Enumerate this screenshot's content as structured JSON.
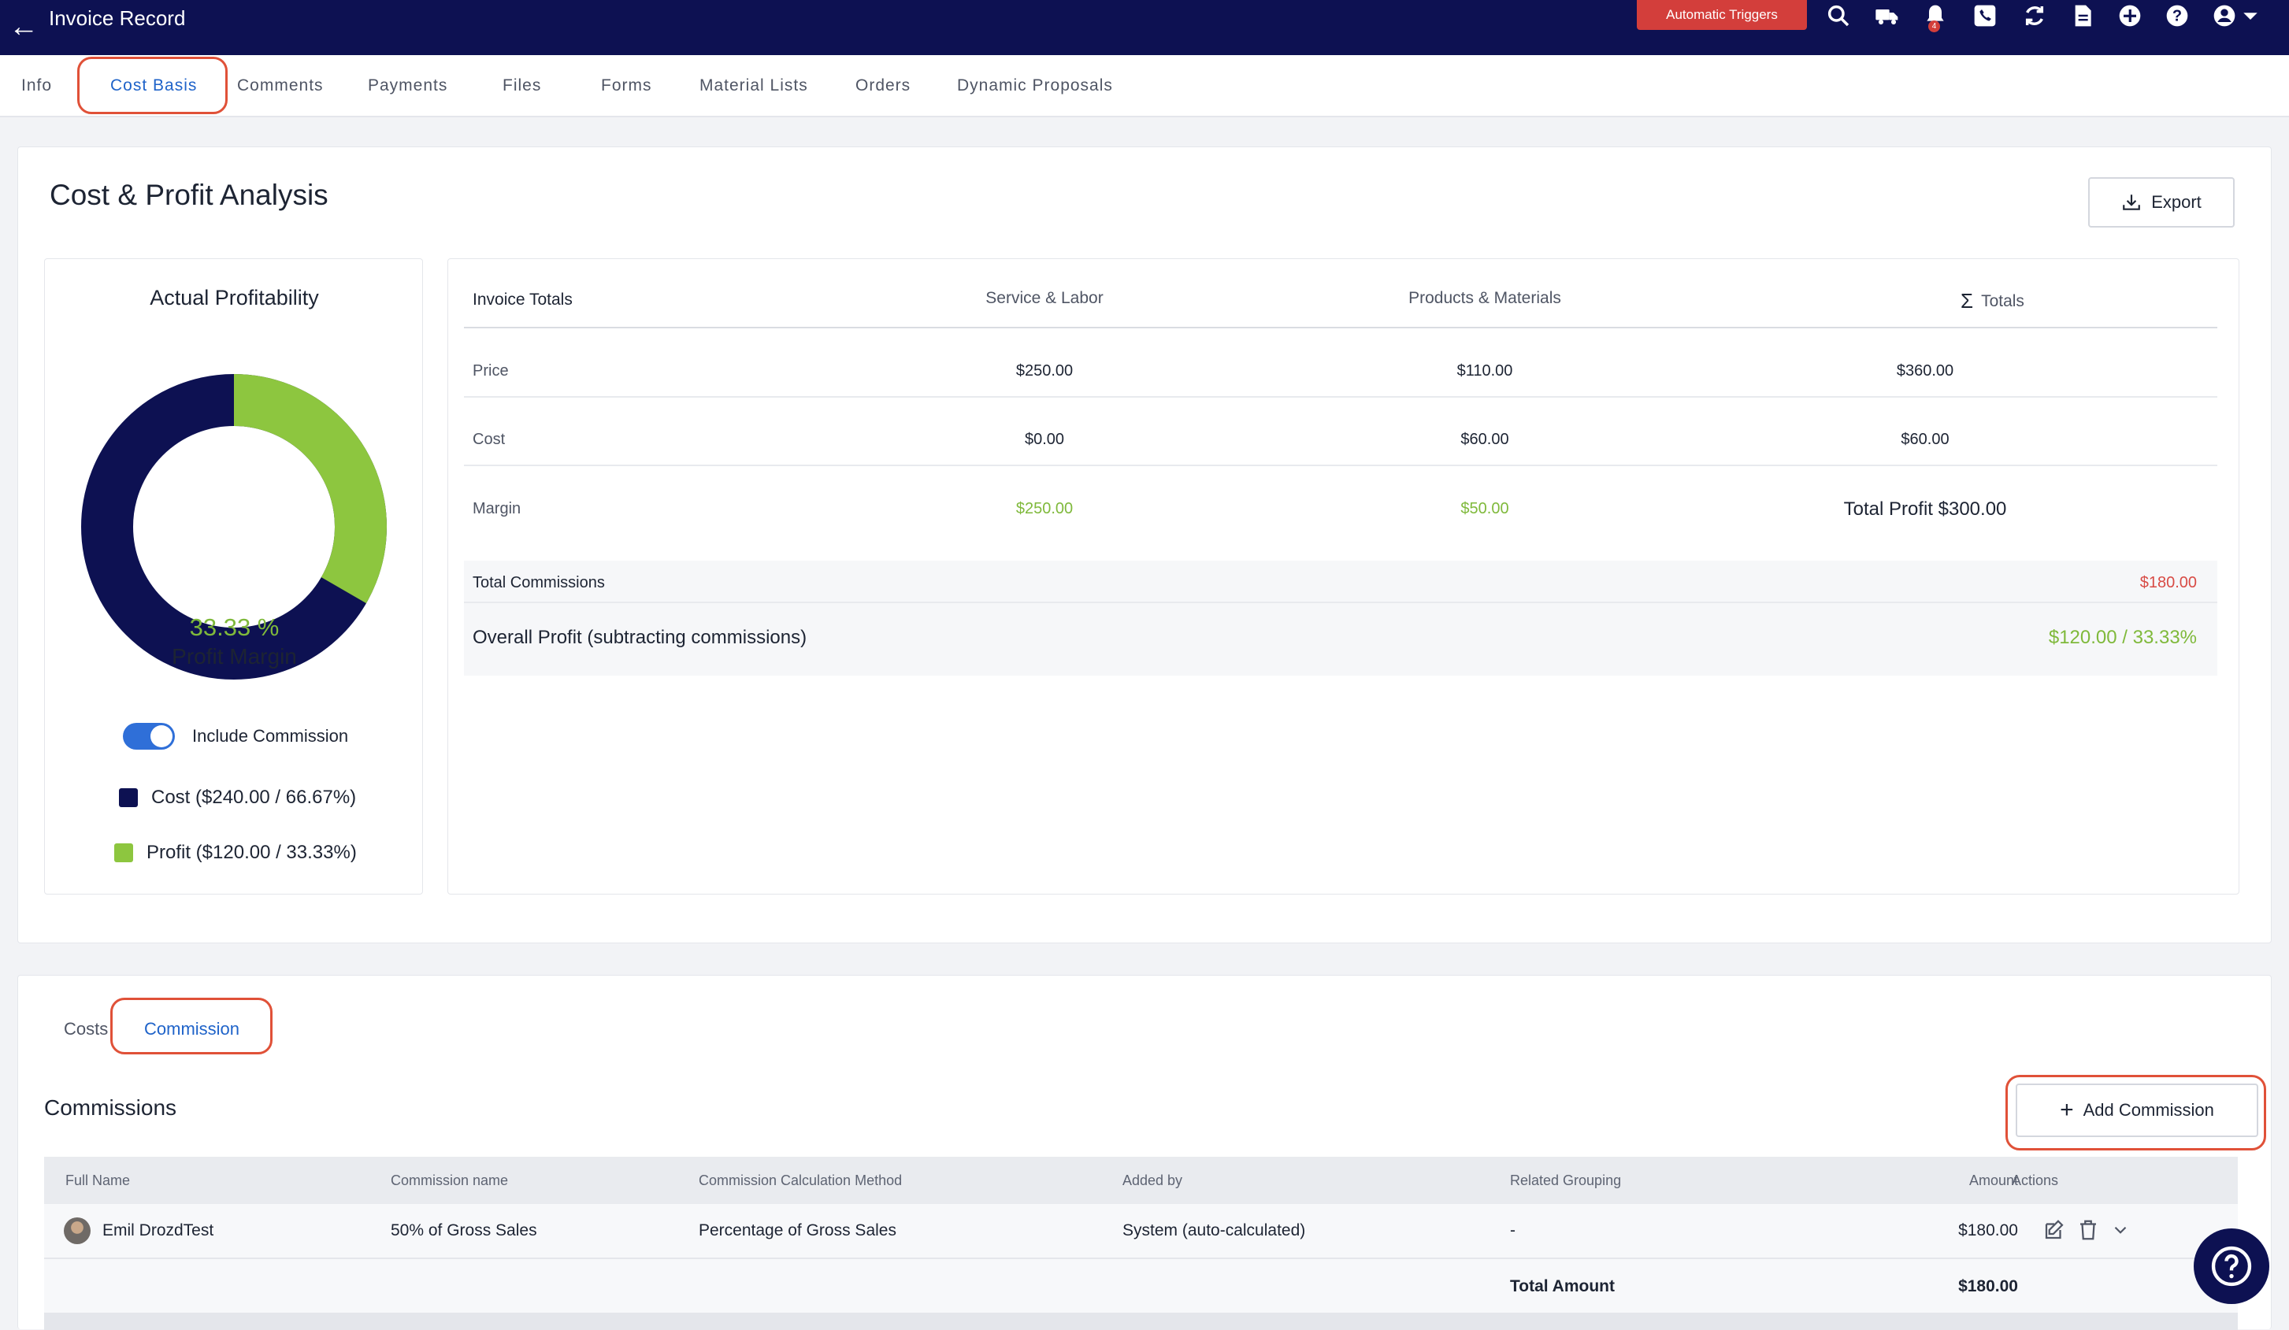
{
  "topbar": {
    "title": "Invoice Record",
    "triggers_label": "Automatic Triggers",
    "notification_count": "4",
    "icons": [
      "back-arrow-icon",
      "search-icon",
      "truck-icon",
      "bell-icon",
      "phone-icon",
      "sync-icon",
      "document-icon",
      "plus-circle-icon",
      "help-icon",
      "user-circle-icon",
      "chevron-down-icon"
    ]
  },
  "tabs": [
    "Info",
    "Cost Basis",
    "Comments",
    "Payments",
    "Files",
    "Forms",
    "Material Lists",
    "Orders",
    "Dynamic Proposals"
  ],
  "active_tab": "Cost Basis",
  "analysis": {
    "title": "Cost & Profit Analysis",
    "export_label": "Export",
    "profitability": {
      "title": "Actual Profitability",
      "percent": "33.33 %",
      "label": "Profit Margin",
      "toggle_label": "Include Commission",
      "toggle_on": true,
      "cost_legend": "Cost ($240.00 / 66.67%)",
      "profit_legend": "Profit ($120.00 / 33.33%)",
      "cost_color": "#0d1152",
      "profit_color": "#8dc63f",
      "profit_fraction": 0.3333
    },
    "totals": {
      "headers": [
        "Invoice Totals",
        "Service & Labor",
        "Products & Materials",
        "Totals"
      ],
      "rows": [
        {
          "label": "Price",
          "service": "$250.00",
          "products": "$110.00",
          "total": "$360.00"
        },
        {
          "label": "Cost",
          "service": "$0.00",
          "products": "$60.00",
          "total": "$60.00"
        },
        {
          "label": "Margin",
          "service": "$250.00",
          "products": "$50.00",
          "total": "Total Profit $300.00"
        }
      ],
      "commissions_label": "Total Commissions",
      "commissions_value": "$180.00",
      "overall_label": "Overall Profit (subtracting commissions)",
      "overall_value": "$120.00 / 33.33%"
    }
  },
  "sub_tabs": [
    "Costs",
    "Commission"
  ],
  "active_sub_tab": "Commission",
  "commissions": {
    "title": "Commissions",
    "add_label": "Add Commission",
    "headers": [
      "Full Name",
      "Commission name",
      "Commission Calculation Method",
      "Added by",
      "Related Grouping",
      "Amount",
      "Actions"
    ],
    "rows": [
      {
        "name": "Emil DrozdTest",
        "commission_name": "50% of Gross Sales",
        "method": "Percentage of Gross Sales",
        "added_by": "System (auto-calculated)",
        "grouping": "-",
        "amount": "$180.00"
      }
    ],
    "total_label": "Total Amount",
    "total_value": "$180.00"
  }
}
